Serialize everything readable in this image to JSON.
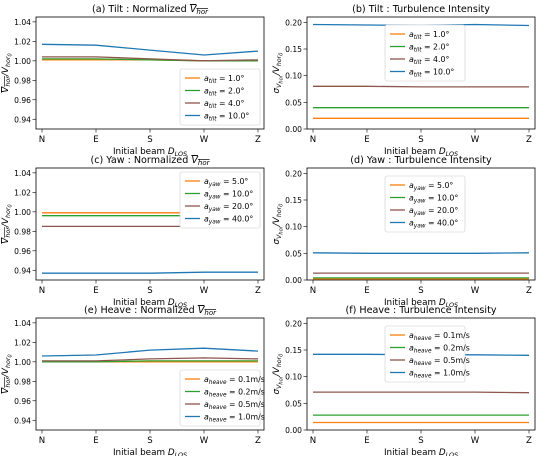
{
  "chart_data": [
    {
      "type": "line",
      "title": "(a) Tilt : Normalized V̅hor",
      "title_main": "(a) Tilt : Normalized ",
      "title_v": "V",
      "title_sub": "hor",
      "title_overline": true,
      "xlabel": "Initial beam D",
      "xlabel_sub": "LOS",
      "ylabel": "V̅hor/Vhor0",
      "ylabel_kind": "ratio",
      "categories": [
        "N",
        "E",
        "S",
        "W",
        "Z"
      ],
      "ylim": [
        0.93,
        1.045
      ],
      "yticks": [
        "0.94",
        "0.96",
        "0.98",
        "1.00",
        "1.02",
        "1.04"
      ],
      "ytick_values": [
        0.94,
        0.96,
        0.98,
        1.0,
        1.02,
        1.04
      ],
      "legend_placement": "lower-right",
      "legend_symbol": "a",
      "legend_sub": "tilt",
      "series": [
        {
          "name": "1.0°",
          "color": "#ff7f0e",
          "values": [
            1.001,
            1.001,
            1.001,
            1.0,
            1.0
          ]
        },
        {
          "name": "2.0°",
          "color": "#2ca02c",
          "values": [
            1.002,
            1.002,
            1.001,
            1.0,
            1.0
          ]
        },
        {
          "name": "4.0°",
          "color": "#8c564b",
          "values": [
            1.004,
            1.004,
            1.002,
            1.0,
            1.001
          ]
        },
        {
          "name": "10.0°",
          "color": "#1f77b4",
          "values": [
            1.017,
            1.016,
            1.011,
            1.006,
            1.01
          ]
        }
      ]
    },
    {
      "type": "line",
      "title": "(b) Tilt : Turbulence Intensity",
      "title_main": "(b) Tilt : Turbulence Intensity",
      "title_overline": false,
      "xlabel": "Initial beam D",
      "xlabel_sub": "LOS",
      "ylabel": "σVhor/Vhor0",
      "ylabel_kind": "sigma",
      "categories": [
        "N",
        "E",
        "S",
        "W",
        "Z"
      ],
      "ylim": [
        0.0,
        0.21
      ],
      "yticks": [
        "0.00",
        "0.05",
        "0.10",
        "0.15",
        "0.20"
      ],
      "ytick_values": [
        0.0,
        0.05,
        0.1,
        0.15,
        0.2
      ],
      "legend_placement": "upper-center",
      "legend_symbol": "a",
      "legend_sub": "tilt",
      "series": [
        {
          "name": "1.0°",
          "color": "#ff7f0e",
          "values": [
            0.02,
            0.02,
            0.02,
            0.02,
            0.02
          ]
        },
        {
          "name": "2.0°",
          "color": "#2ca02c",
          "values": [
            0.04,
            0.04,
            0.04,
            0.04,
            0.04
          ]
        },
        {
          "name": "4.0°",
          "color": "#8c564b",
          "values": [
            0.08,
            0.08,
            0.079,
            0.079,
            0.079
          ]
        },
        {
          "name": "10.0°",
          "color": "#1f77b4",
          "values": [
            0.196,
            0.195,
            0.194,
            0.196,
            0.194
          ]
        }
      ]
    },
    {
      "type": "line",
      "title": "(c) Yaw : Normalized V̅hor",
      "title_main": "(c) Yaw : Normalized ",
      "title_v": "V",
      "title_sub": "hor",
      "title_overline": true,
      "xlabel": "Initial beam D",
      "xlabel_sub": "LOS",
      "ylabel": "V̅hor/Vhor0",
      "ylabel_kind": "ratio",
      "categories": [
        "N",
        "E",
        "S",
        "W",
        "Z"
      ],
      "ylim": [
        0.93,
        1.045
      ],
      "yticks": [
        "0.94",
        "0.96",
        "0.98",
        "1.00",
        "1.02",
        "1.04"
      ],
      "ytick_values": [
        0.94,
        0.96,
        0.98,
        1.0,
        1.02,
        1.04
      ],
      "legend_placement": "upper-right",
      "legend_symbol": "a",
      "legend_sub": "yaw",
      "series": [
        {
          "name": "5.0°",
          "color": "#ff7f0e",
          "values": [
            0.999,
            0.999,
            0.999,
            0.999,
            0.999
          ]
        },
        {
          "name": "10.0°",
          "color": "#2ca02c",
          "values": [
            0.996,
            0.996,
            0.996,
            0.996,
            0.996
          ]
        },
        {
          "name": "20.0°",
          "color": "#8c564b",
          "values": [
            0.985,
            0.985,
            0.985,
            0.985,
            0.985
          ]
        },
        {
          "name": "40.0°",
          "color": "#1f77b4",
          "values": [
            0.937,
            0.937,
            0.937,
            0.938,
            0.938
          ]
        }
      ]
    },
    {
      "type": "line",
      "title": "(d) Yaw : Turbulence Intensity",
      "title_main": "(d) Yaw : Turbulence Intensity",
      "title_overline": false,
      "xlabel": "Initial beam D",
      "xlabel_sub": "LOS",
      "ylabel": "σVhor/Vhor0",
      "ylabel_kind": "sigma",
      "categories": [
        "N",
        "E",
        "S",
        "W",
        "Z"
      ],
      "ylim": [
        0.0,
        0.21
      ],
      "yticks": [
        "0.00",
        "0.05",
        "0.10",
        "0.15",
        "0.20"
      ],
      "ytick_values": [
        0.0,
        0.05,
        0.1,
        0.15,
        0.2
      ],
      "legend_placement": "upper-center",
      "legend_symbol": "a",
      "legend_sub": "yaw",
      "series": [
        {
          "name": "5.0°",
          "color": "#ff7f0e",
          "values": [
            0.002,
            0.002,
            0.002,
            0.002,
            0.002
          ]
        },
        {
          "name": "10.0°",
          "color": "#2ca02c",
          "values": [
            0.004,
            0.004,
            0.004,
            0.004,
            0.004
          ]
        },
        {
          "name": "20.0°",
          "color": "#8c564b",
          "values": [
            0.013,
            0.013,
            0.013,
            0.013,
            0.013
          ]
        },
        {
          "name": "40.0°",
          "color": "#1f77b4",
          "values": [
            0.051,
            0.05,
            0.05,
            0.05,
            0.051
          ]
        }
      ]
    },
    {
      "type": "line",
      "title": "(e) Heave : Normalized V̅hor",
      "title_main": "(e) Heave : Normalized ",
      "title_v": "V",
      "title_sub": "hor",
      "title_overline": true,
      "xlabel": "Initial beam D",
      "xlabel_sub": "LOS",
      "ylabel": "V̅hor/Vhor0",
      "ylabel_kind": "ratio",
      "categories": [
        "N",
        "E",
        "S",
        "W",
        "Z"
      ],
      "ylim": [
        0.93,
        1.045
      ],
      "yticks": [
        "0.94",
        "0.96",
        "0.98",
        "1.00",
        "1.02",
        "1.04"
      ],
      "ytick_values": [
        0.94,
        0.96,
        0.98,
        1.0,
        1.02,
        1.04
      ],
      "legend_placement": "lower-right",
      "legend_symbol": "a",
      "legend_sub": "heave",
      "series": [
        {
          "name": "0.1m/s",
          "color": "#ff7f0e",
          "values": [
            1.0,
            1.0,
            1.0,
            1.0,
            1.0
          ]
        },
        {
          "name": "0.2m/s",
          "color": "#2ca02c",
          "values": [
            1.0,
            1.0,
            1.001,
            1.001,
            1.001
          ]
        },
        {
          "name": "0.5m/s",
          "color": "#8c564b",
          "values": [
            1.001,
            1.001,
            1.003,
            1.004,
            1.003
          ]
        },
        {
          "name": "1.0m/s",
          "color": "#1f77b4",
          "values": [
            1.006,
            1.007,
            1.012,
            1.014,
            1.011
          ]
        }
      ]
    },
    {
      "type": "line",
      "title": "(f) Heave : Turbulence Intensity",
      "title_main": "(f) Heave : Turbulence Intensity",
      "title_overline": false,
      "xlabel": "Initial beam D",
      "xlabel_sub": "LOS",
      "ylabel": "σVhor/Vhor0",
      "ylabel_kind": "sigma",
      "categories": [
        "N",
        "E",
        "S",
        "W",
        "Z"
      ],
      "ylim": [
        0.0,
        0.21
      ],
      "yticks": [
        "0.00",
        "0.05",
        "0.10",
        "0.15",
        "0.20"
      ],
      "ytick_values": [
        0.0,
        0.05,
        0.1,
        0.15,
        0.2
      ],
      "legend_placement": "upper-center",
      "legend_symbol": "a",
      "legend_sub": "heave",
      "series": [
        {
          "name": "0.1m/s",
          "color": "#ff7f0e",
          "values": [
            0.014,
            0.014,
            0.014,
            0.014,
            0.014
          ]
        },
        {
          "name": "0.2m/s",
          "color": "#2ca02c",
          "values": [
            0.028,
            0.028,
            0.028,
            0.028,
            0.028
          ]
        },
        {
          "name": "0.5m/s",
          "color": "#8c564b",
          "values": [
            0.071,
            0.071,
            0.071,
            0.071,
            0.07
          ]
        },
        {
          "name": "1.0m/s",
          "color": "#1f77b4",
          "values": [
            0.142,
            0.142,
            0.141,
            0.141,
            0.14
          ]
        }
      ]
    }
  ]
}
